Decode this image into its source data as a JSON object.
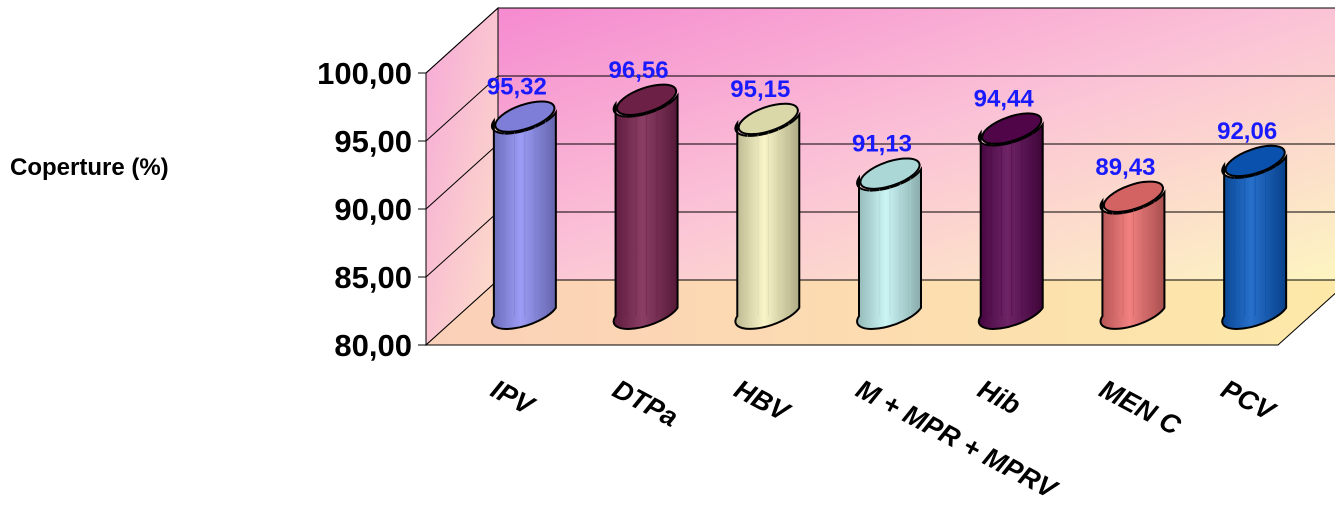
{
  "chart_data": {
    "type": "bar",
    "ylabel": "Coperture (%)",
    "ylim": [
      80,
      100
    ],
    "yticks": [
      80,
      85,
      90,
      95,
      100
    ],
    "ytick_labels": [
      "80,00",
      "85,00",
      "90,00",
      "95,00",
      "100,00"
    ],
    "categories": [
      "IPV",
      "DTPa",
      "HBV",
      "M + MPR + MPRV",
      "Hib",
      "MEN C",
      "PCV"
    ],
    "values": [
      95.32,
      96.56,
      95.15,
      91.13,
      94.44,
      89.43,
      92.06
    ],
    "value_labels": [
      "95,32",
      "96,56",
      "95,15",
      "91,13",
      "94,44",
      "89,43",
      "92,06"
    ],
    "colors": [
      "#8f8ff5",
      "#7b2450",
      "#f8f4c0",
      "#c4f4f4",
      "#5a0652",
      "#f07070",
      "#0a5cc4"
    ],
    "grid": true,
    "legend": "none",
    "three_d": true
  }
}
